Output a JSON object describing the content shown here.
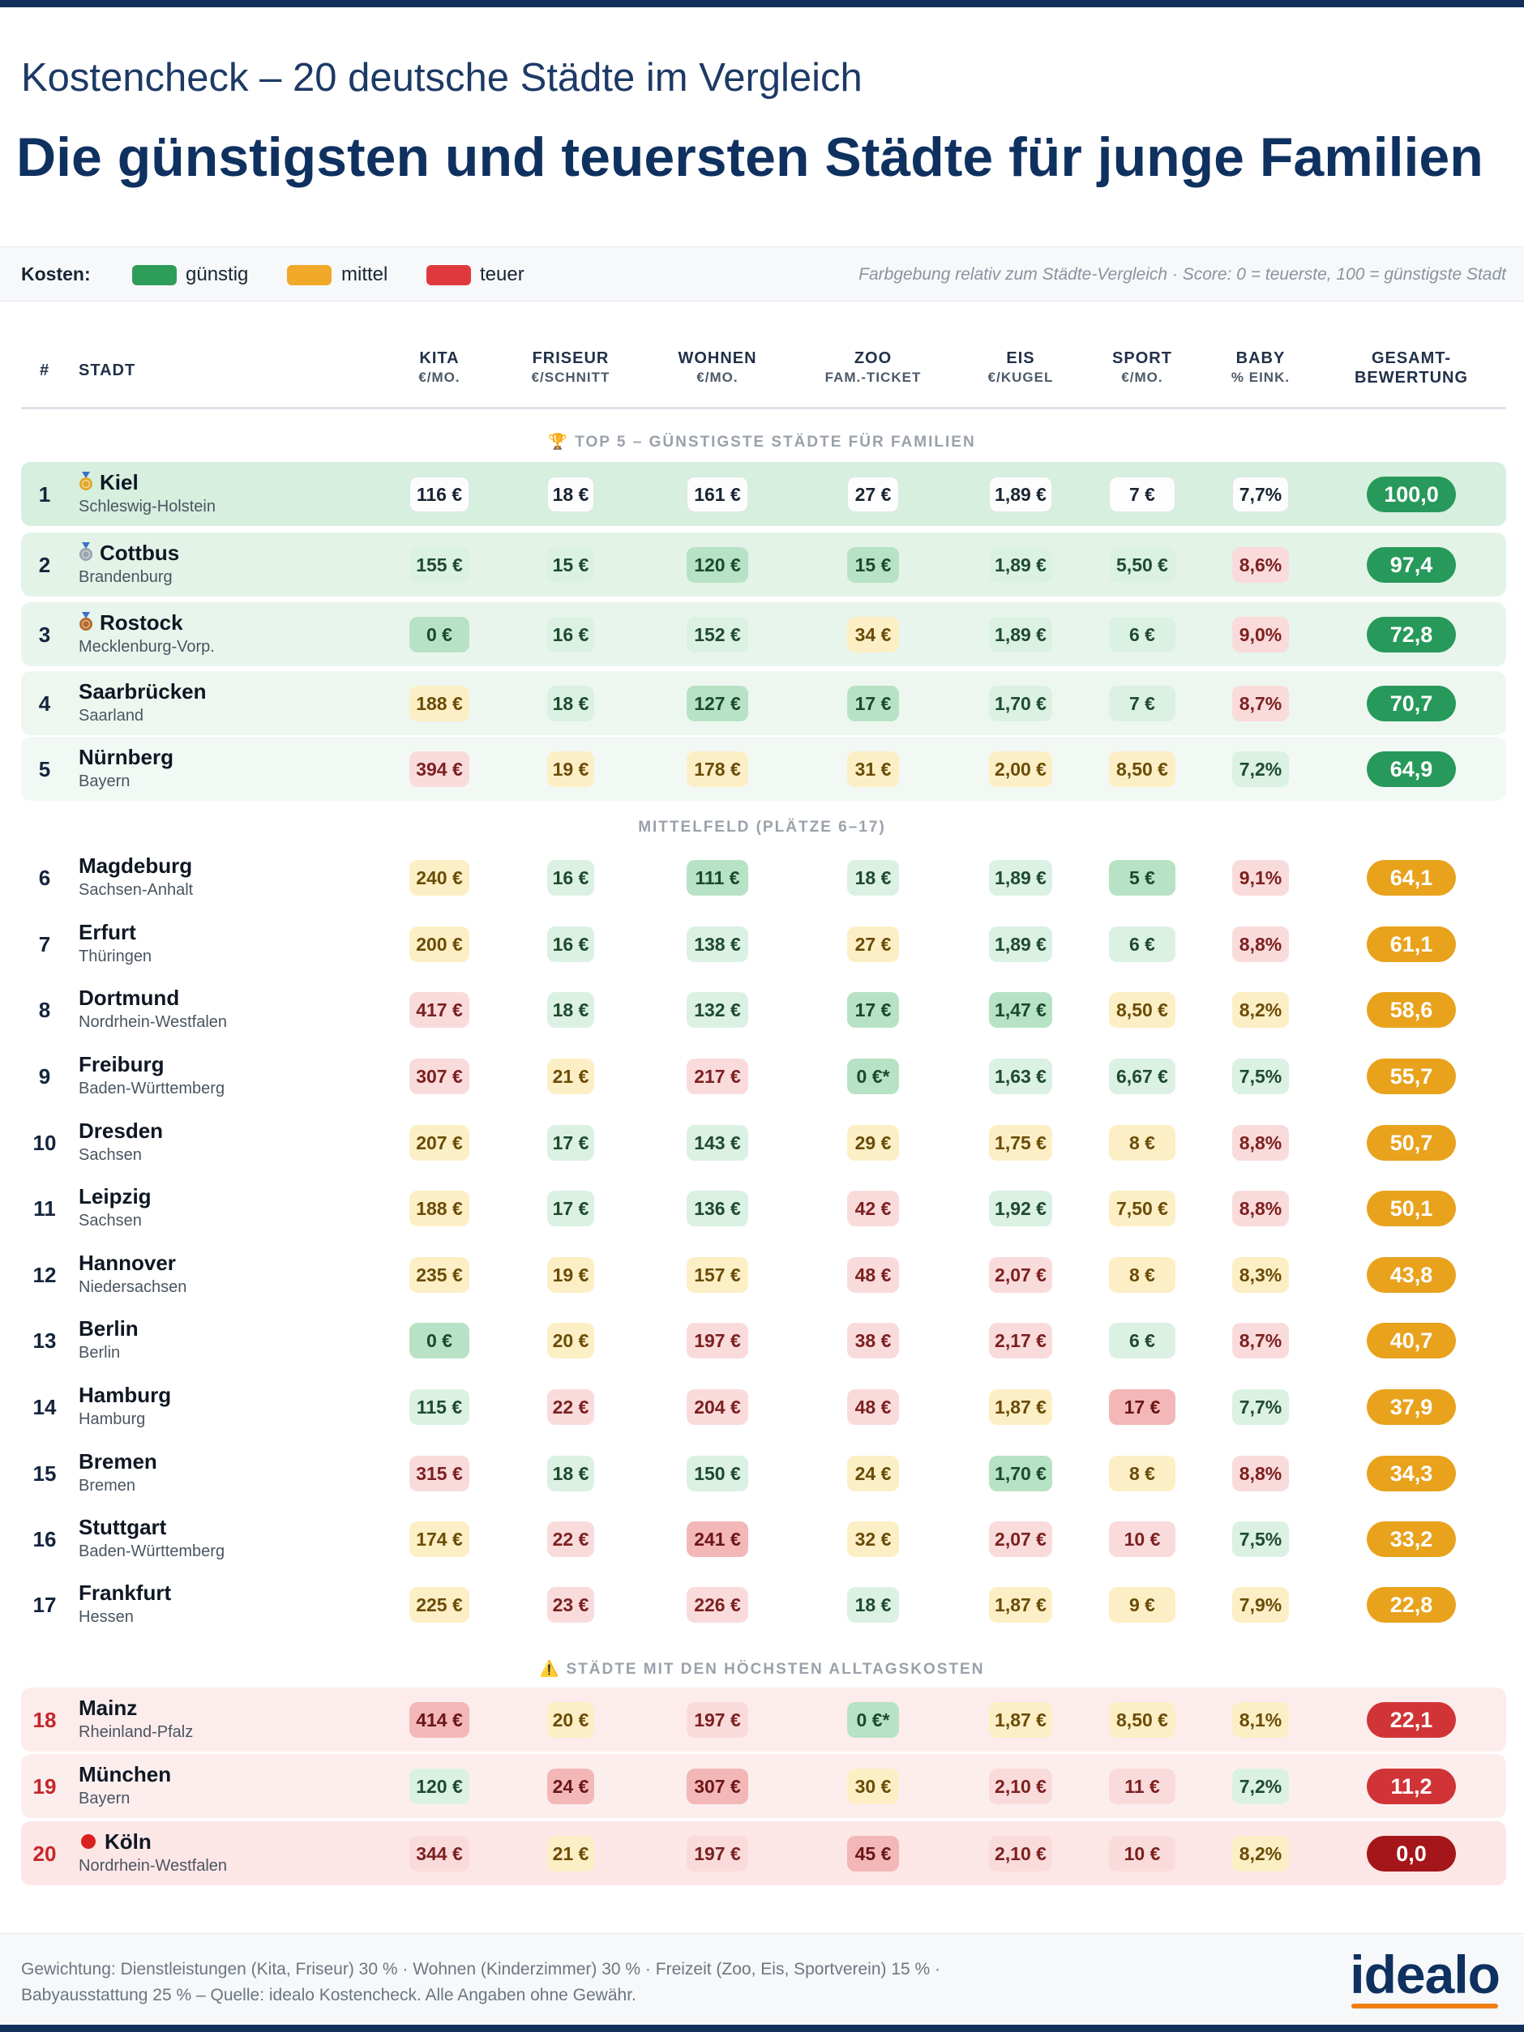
{
  "subtitle": "Kostencheck – 20 deutsche Städte im Vergleich",
  "title": "Die günstigsten und teuersten Städte für junge Familien",
  "legend": {
    "label": "Kosten:",
    "items": [
      {
        "label": "günstig",
        "color": "#2e9d5a"
      },
      {
        "label": "mittel",
        "color": "#f0a928"
      },
      {
        "label": "teuer",
        "color": "#e0393d"
      }
    ],
    "note": "Farbgebung relativ zum Städte-Vergleich · Score: 0 = teuerste, 100 = günstigste Stadt"
  },
  "columns": {
    "rank": "#",
    "city": "STADT",
    "kita": {
      "a": "KITA",
      "b": "€/MO."
    },
    "friseur": {
      "a": "FRISEUR",
      "b": "€/SCHNITT"
    },
    "wohnen": {
      "a": "WOHNEN",
      "b": "€/MO."
    },
    "zoo": {
      "a": "ZOO",
      "b": "FAM.-TICKET"
    },
    "eis": {
      "a": "EIS",
      "b": "€/KUGEL"
    },
    "sport": {
      "a": "SPORT",
      "b": "€/MO."
    },
    "baby": {
      "a": "BABY",
      "b": "% EINK."
    },
    "gesamt": {
      "a": "GESAMT-",
      "b": "BEWERTUNG"
    }
  },
  "sections": {
    "top": "🏆 TOP 5 – GÜNSTIGSTE STÄDTE FÜR FAMILIEN",
    "mid": "MITTELFELD (PLÄTZE 6–17)",
    "bottom": "⚠️ STÄDTE MIT DEN HÖCHSTEN ALLTAGSKOSTEN"
  },
  "rows": [
    {
      "rank": "1",
      "city": "Kiel",
      "state": "Schleswig-Holstein",
      "medal": "gold",
      "kita": "116 €",
      "friseur": "18 €",
      "wohnen": "161 €",
      "zoo": "27 €",
      "eis": "1,89 €",
      "sport": "7 €",
      "baby": "7,7%",
      "score": "100,0"
    },
    {
      "rank": "2",
      "city": "Cottbus",
      "state": "Brandenburg",
      "medal": "silver",
      "kita": "155 €",
      "friseur": "15 €",
      "wohnen": "120 €",
      "zoo": "15 €",
      "eis": "1,89 €",
      "sport": "5,50 €",
      "baby": "8,6%",
      "score": "97,4"
    },
    {
      "rank": "3",
      "city": "Rostock",
      "state": "Mecklenburg-Vorp.",
      "medal": "bronze",
      "kita": "0 €",
      "friseur": "16 €",
      "wohnen": "152 €",
      "zoo": "34 €",
      "eis": "1,89 €",
      "sport": "6 €",
      "baby": "9,0%",
      "score": "72,8"
    },
    {
      "rank": "4",
      "city": "Saarbrücken",
      "state": "Saarland",
      "kita": "188 €",
      "friseur": "18 €",
      "wohnen": "127 €",
      "zoo": "17 €",
      "eis": "1,70 €",
      "sport": "7 €",
      "baby": "8,7%",
      "score": "70,7"
    },
    {
      "rank": "5",
      "city": "Nürnberg",
      "state": "Bayern",
      "kita": "394 €",
      "friseur": "19 €",
      "wohnen": "178 €",
      "zoo": "31 €",
      "eis": "2,00 €",
      "sport": "8,50 €",
      "baby": "7,2%",
      "score": "64,9"
    },
    {
      "rank": "6",
      "city": "Magdeburg",
      "state": "Sachsen-Anhalt",
      "kita": "240 €",
      "friseur": "16 €",
      "wohnen": "111 €",
      "zoo": "18 €",
      "eis": "1,89 €",
      "sport": "5 €",
      "baby": "9,1%",
      "score": "64,1"
    },
    {
      "rank": "7",
      "city": "Erfurt",
      "state": "Thüringen",
      "kita": "200 €",
      "friseur": "16 €",
      "wohnen": "138 €",
      "zoo": "27 €",
      "eis": "1,89 €",
      "sport": "6 €",
      "baby": "8,8%",
      "score": "61,1"
    },
    {
      "rank": "8",
      "city": "Dortmund",
      "state": "Nordrhein-Westfalen",
      "kita": "417 €",
      "friseur": "18 €",
      "wohnen": "132 €",
      "zoo": "17 €",
      "eis": "1,47 €",
      "sport": "8,50 €",
      "baby": "8,2%",
      "score": "58,6"
    },
    {
      "rank": "9",
      "city": "Freiburg",
      "state": "Baden-Württemberg",
      "kita": "307 €",
      "friseur": "21 €",
      "wohnen": "217 €",
      "zoo": "0 €*",
      "eis": "1,63 €",
      "sport": "6,67 €",
      "baby": "7,5%",
      "score": "55,7"
    },
    {
      "rank": "10",
      "city": "Dresden",
      "state": "Sachsen",
      "kita": "207 €",
      "friseur": "17 €",
      "wohnen": "143 €",
      "zoo": "29 €",
      "eis": "1,75 €",
      "sport": "8 €",
      "baby": "8,8%",
      "score": "50,7"
    },
    {
      "rank": "11",
      "city": "Leipzig",
      "state": "Sachsen",
      "kita": "188 €",
      "friseur": "17 €",
      "wohnen": "136 €",
      "zoo": "42 €",
      "eis": "1,92 €",
      "sport": "7,50 €",
      "baby": "8,8%",
      "score": "50,1"
    },
    {
      "rank": "12",
      "city": "Hannover",
      "state": "Niedersachsen",
      "kita": "235 €",
      "friseur": "19 €",
      "wohnen": "157 €",
      "zoo": "48 €",
      "eis": "2,07 €",
      "sport": "8 €",
      "baby": "8,3%",
      "score": "43,8"
    },
    {
      "rank": "13",
      "city": "Berlin",
      "state": "Berlin",
      "kita": "0 €",
      "friseur": "20 €",
      "wohnen": "197 €",
      "zoo": "38 €",
      "eis": "2,17 €",
      "sport": "6 €",
      "baby": "8,7%",
      "score": "40,7"
    },
    {
      "rank": "14",
      "city": "Hamburg",
      "state": "Hamburg",
      "kita": "115 €",
      "friseur": "22 €",
      "wohnen": "204 €",
      "zoo": "48 €",
      "eis": "1,87 €",
      "sport": "17 €",
      "baby": "7,7%",
      "score": "37,9"
    },
    {
      "rank": "15",
      "city": "Bremen",
      "state": "Bremen",
      "kita": "315 €",
      "friseur": "18 €",
      "wohnen": "150 €",
      "zoo": "24 €",
      "eis": "1,70 €",
      "sport": "8 €",
      "baby": "8,8%",
      "score": "34,3"
    },
    {
      "rank": "16",
      "city": "Stuttgart",
      "state": "Baden-Württemberg",
      "kita": "174 €",
      "friseur": "22 €",
      "wohnen": "241 €",
      "zoo": "32 €",
      "eis": "2,07 €",
      "sport": "10 €",
      "baby": "7,5%",
      "score": "33,2"
    },
    {
      "rank": "17",
      "city": "Frankfurt",
      "state": "Hessen",
      "kita": "225 €",
      "friseur": "23 €",
      "wohnen": "226 €",
      "zoo": "18 €",
      "eis": "1,87 €",
      "sport": "9 €",
      "baby": "7,9%",
      "score": "22,8"
    },
    {
      "rank": "18",
      "city": "Mainz",
      "state": "Rheinland-Pfalz",
      "kita": "414 €",
      "friseur": "20 €",
      "wohnen": "197 €",
      "zoo": "0 €*",
      "eis": "1,87 €",
      "sport": "8,50 €",
      "baby": "8,1%",
      "score": "22,1"
    },
    {
      "rank": "19",
      "city": "München",
      "state": "Bayern",
      "kita": "120 €",
      "friseur": "24 €",
      "wohnen": "307 €",
      "zoo": "30 €",
      "eis": "2,10 €",
      "sport": "11 €",
      "baby": "7,2%",
      "score": "11,2"
    },
    {
      "rank": "20",
      "city": "Köln",
      "state": "Nordrhein-Westfalen",
      "medal": "red",
      "kita": "344 €",
      "friseur": "21 €",
      "wohnen": "197 €",
      "zoo": "45 €",
      "eis": "2,10 €",
      "sport": "10 €",
      "baby": "8,2%",
      "score": "0,0"
    }
  ],
  "footer": {
    "line1": "Gewichtung: Dienstleistungen (Kita, Friseur) 30 % · Wohnen (Kinderzimmer) 30 % · Freizeit (Zoo, Eis, Sportverein) 15 % ·",
    "line2": "Babyausstattung 25 % – Quelle: idealo Kostencheck. Alle Angaben ohne Gewähr."
  },
  "logo": "idealo"
}
